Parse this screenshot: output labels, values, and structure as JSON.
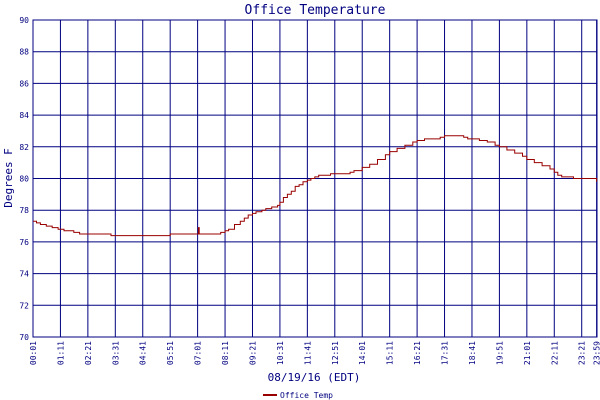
{
  "chart_data": {
    "type": "line",
    "title": "Office Temperature",
    "xlabel": "08/19/16 (EDT)",
    "ylabel": "Degrees F",
    "ylim": [
      70,
      90
    ],
    "yticks": [
      70,
      72,
      74,
      76,
      78,
      80,
      82,
      84,
      86,
      88,
      90
    ],
    "xlim": [
      "00:01",
      "24:00"
    ],
    "xticks": [
      "00:01",
      "01:11",
      "02:21",
      "03:31",
      "04:41",
      "05:51",
      "07:01",
      "08:11",
      "09:21",
      "10:31",
      "11:41",
      "12:51",
      "14:01",
      "15:11",
      "16:21",
      "17:31",
      "18:41",
      "19:51",
      "21:01",
      "22:11",
      "23:21",
      "23:59"
    ],
    "grid": true,
    "legend": "bottom-left",
    "colors": {
      "line": "#990000",
      "grid": "#000080",
      "text": "#000080",
      "title": "#000080",
      "background": "#ffffff"
    },
    "series": [
      {
        "name": "Office Temp",
        "x": [
          "00:01",
          "00:10",
          "00:20",
          "00:35",
          "00:50",
          "01:05",
          "01:20",
          "01:45",
          "02:00",
          "02:10",
          "02:30",
          "02:50",
          "03:20",
          "03:31",
          "03:50",
          "04:10",
          "04:41",
          "05:10",
          "05:25",
          "05:51",
          "06:20",
          "06:50",
          "07:00",
          "07:03",
          "07:05",
          "07:10",
          "07:30",
          "07:50",
          "08:00",
          "08:11",
          "08:20",
          "08:35",
          "08:50",
          "09:00",
          "09:10",
          "09:21",
          "09:30",
          "09:45",
          "09:55",
          "10:10",
          "10:25",
          "10:31",
          "10:40",
          "10:50",
          "11:00",
          "11:10",
          "11:20",
          "11:30",
          "11:41",
          "11:50",
          "12:00",
          "12:10",
          "12:30",
          "12:40",
          "12:51",
          "13:10",
          "13:20",
          "13:30",
          "13:40",
          "14:01",
          "14:20",
          "14:40",
          "15:00",
          "15:11",
          "15:30",
          "15:50",
          "16:10",
          "16:21",
          "16:40",
          "17:00",
          "17:20",
          "17:31",
          "17:50",
          "18:10",
          "18:20",
          "18:30",
          "18:41",
          "19:00",
          "19:20",
          "19:40",
          "19:51",
          "20:10",
          "20:30",
          "20:50",
          "21:01",
          "21:20",
          "21:40",
          "22:00",
          "22:11",
          "22:20",
          "22:30",
          "22:40",
          "23:00",
          "23:21",
          "23:40",
          "23:55",
          "23:59"
        ],
        "values": [
          77.3,
          77.2,
          77.1,
          77.0,
          76.9,
          76.8,
          76.7,
          76.6,
          76.5,
          76.5,
          76.5,
          76.5,
          76.4,
          76.4,
          76.4,
          76.4,
          76.4,
          76.4,
          76.4,
          76.5,
          76.5,
          76.5,
          76.5,
          76.9,
          76.5,
          76.5,
          76.5,
          76.5,
          76.6,
          76.7,
          76.8,
          77.1,
          77.3,
          77.5,
          77.7,
          77.8,
          77.9,
          78.0,
          78.1,
          78.2,
          78.3,
          78.5,
          78.8,
          79.0,
          79.2,
          79.5,
          79.6,
          79.8,
          79.9,
          80.0,
          80.1,
          80.2,
          80.2,
          80.3,
          80.3,
          80.3,
          80.3,
          80.4,
          80.5,
          80.7,
          80.9,
          81.2,
          81.5,
          81.7,
          81.9,
          82.1,
          82.3,
          82.4,
          82.5,
          82.5,
          82.6,
          82.7,
          82.7,
          82.7,
          82.6,
          82.5,
          82.5,
          82.4,
          82.3,
          82.1,
          82.0,
          81.8,
          81.6,
          81.4,
          81.2,
          81.0,
          80.8,
          80.6,
          80.4,
          80.2,
          80.1,
          80.1,
          80.0,
          80.0,
          80.0,
          80.0,
          79.8
        ]
      }
    ]
  }
}
